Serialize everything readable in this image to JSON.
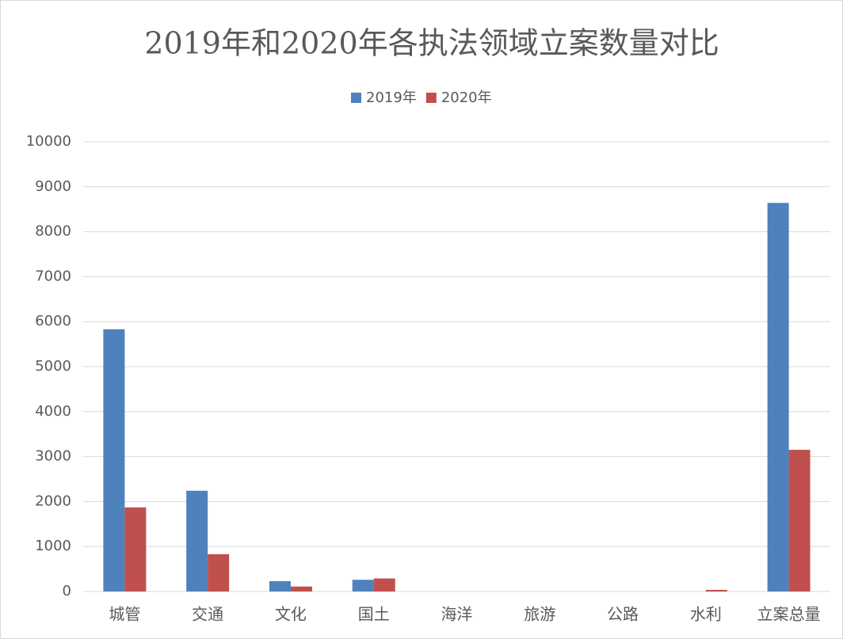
{
  "chart_data": {
    "type": "bar",
    "title": "2019年和2020年各执法领域立案数量对比",
    "categories": [
      "城管",
      "交通",
      "文化",
      "国土",
      "海洋",
      "旅游",
      "公路",
      "水利",
      "立案总量"
    ],
    "series": [
      {
        "name": "2019年",
        "color": "#4f81bd",
        "values": [
          5830,
          2240,
          230,
          260,
          0,
          0,
          0,
          0,
          8640
        ]
      },
      {
        "name": "2020年",
        "color": "#c0504d",
        "values": [
          1870,
          830,
          110,
          290,
          0,
          0,
          0,
          35,
          3150
        ]
      }
    ],
    "ylim": [
      0,
      10000
    ],
    "yticks": [
      0,
      1000,
      2000,
      3000,
      4000,
      5000,
      6000,
      7000,
      8000,
      9000,
      10000
    ],
    "grid": true,
    "legend": "top"
  }
}
